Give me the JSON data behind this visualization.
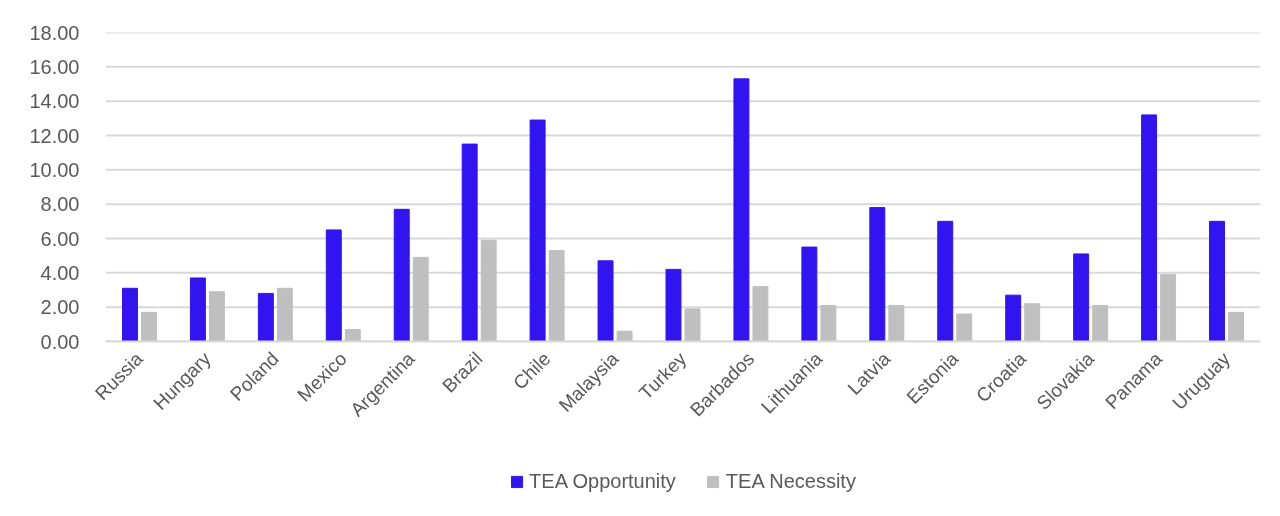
{
  "chart_data": {
    "type": "bar",
    "categories": [
      "Russia",
      "Hungary",
      "Poland",
      "Mexico",
      "Argentina",
      "Brazil",
      "Chile",
      "Malaysia",
      "Turkey",
      "Barbados",
      "Lithuania",
      "Latvia",
      "Estonia",
      "Croatia",
      "Slovakia",
      "Panama",
      "Uruguay"
    ],
    "series": [
      {
        "name": "TEA Opportunity",
        "color": "#3214f0",
        "values": [
          3.1,
          3.7,
          2.8,
          6.5,
          7.7,
          11.5,
          12.9,
          4.7,
          4.2,
          15.3,
          5.5,
          7.8,
          7.0,
          2.7,
          5.1,
          13.2,
          7.0
        ]
      },
      {
        "name": "TEA Necessity",
        "color": "#bfbfbf",
        "values": [
          1.7,
          2.9,
          3.1,
          0.7,
          4.9,
          5.9,
          5.3,
          0.6,
          1.9,
          3.2,
          2.1,
          2.1,
          1.6,
          2.2,
          2.1,
          3.9,
          1.7
        ]
      }
    ],
    "ylim": [
      0,
      18
    ],
    "yticks": [
      {
        "value": 0,
        "label": "0.00"
      },
      {
        "value": 2,
        "label": "2.00"
      },
      {
        "value": 4,
        "label": "4.00"
      },
      {
        "value": 6,
        "label": "6.00"
      },
      {
        "value": 8,
        "label": "8.00"
      },
      {
        "value": 10,
        "label": "10.00"
      },
      {
        "value": 12,
        "label": "12.00"
      },
      {
        "value": 14,
        "label": "14.00"
      },
      {
        "value": 16,
        "label": "16.00"
      },
      {
        "value": 18,
        "label": "18.00"
      }
    ],
    "grid": "y",
    "legend": "bottom"
  }
}
